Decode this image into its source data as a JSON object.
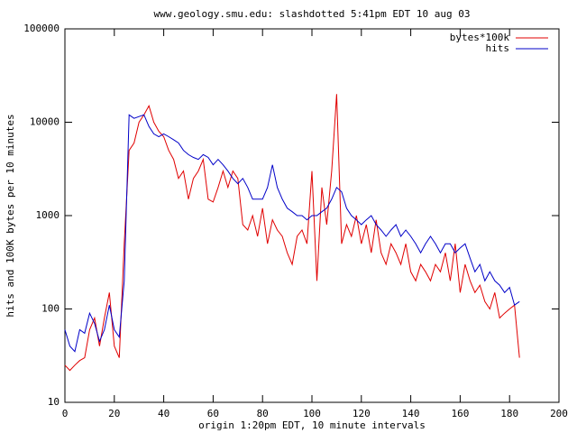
{
  "chart_data": {
    "type": "line",
    "title": "www.geology.smu.edu: slashdotted 5:41pm EDT 10 aug 03",
    "xlabel": "origin 1:20pm EDT, 10 minute intervals",
    "ylabel": "hits and 100K bytes per 10 minutes",
    "yscale": "log",
    "legend": "upper right",
    "xlim": [
      0,
      200
    ],
    "xticks": [
      0,
      20,
      40,
      60,
      80,
      100,
      120,
      140,
      160,
      180,
      200
    ],
    "ylim": [
      10,
      100000
    ],
    "yticks": [
      10,
      100,
      1000,
      10000,
      100000
    ],
    "x": [
      0,
      2,
      4,
      6,
      8,
      10,
      12,
      14,
      16,
      18,
      20,
      22,
      24,
      26,
      28,
      30,
      32,
      34,
      36,
      38,
      40,
      42,
      44,
      46,
      48,
      50,
      52,
      54,
      56,
      58,
      60,
      62,
      64,
      66,
      68,
      70,
      72,
      74,
      76,
      78,
      80,
      82,
      84,
      86,
      88,
      90,
      92,
      94,
      96,
      98,
      100,
      102,
      104,
      106,
      108,
      110,
      112,
      114,
      116,
      118,
      120,
      122,
      124,
      126,
      128,
      130,
      132,
      134,
      136,
      138,
      140,
      142,
      144,
      146,
      148,
      150,
      152,
      154,
      156,
      158,
      160,
      162,
      164,
      166,
      168,
      170,
      172,
      174,
      176,
      178,
      180,
      182,
      184
    ],
    "series": [
      {
        "name": "bytes*100k",
        "color": "#e00000",
        "values": [
          25,
          22,
          25,
          28,
          30,
          60,
          80,
          40,
          80,
          150,
          40,
          30,
          500,
          5000,
          6000,
          10000,
          12000,
          15000,
          10000,
          8000,
          7000,
          5000,
          4000,
          2500,
          3000,
          1500,
          2500,
          3000,
          4000,
          1500,
          1400,
          2000,
          3000,
          2000,
          3000,
          2500,
          800,
          700,
          1000,
          600,
          1200,
          500,
          900,
          700,
          600,
          400,
          300,
          600,
          700,
          500,
          3000,
          200,
          2000,
          800,
          3000,
          20000,
          500,
          800,
          600,
          1000,
          500,
          800,
          400,
          900,
          400,
          300,
          500,
          400,
          300,
          500,
          250,
          200,
          300,
          250,
          200,
          300,
          250,
          400,
          200,
          500,
          150,
          300,
          200,
          150,
          180,
          120,
          100,
          150,
          80,
          90,
          100,
          110,
          30
        ]
      },
      {
        "name": "hits",
        "color": "#0000c8",
        "values": [
          60,
          40,
          35,
          60,
          55,
          90,
          70,
          45,
          60,
          110,
          60,
          50,
          200,
          12000,
          11000,
          11500,
          12000,
          9000,
          7500,
          7000,
          7500,
          7000,
          6500,
          6000,
          5000,
          4500,
          4200,
          4000,
          4500,
          4200,
          3500,
          4000,
          3500,
          3000,
          2500,
          2200,
          2500,
          2000,
          1500,
          1500,
          1500,
          2000,
          3500,
          2000,
          1500,
          1200,
          1100,
          1000,
          1000,
          900,
          1000,
          1000,
          1100,
          1200,
          1500,
          2000,
          1800,
          1200,
          1000,
          900,
          800,
          900,
          1000,
          800,
          700,
          600,
          700,
          800,
          600,
          700,
          600,
          500,
          400,
          500,
          600,
          500,
          400,
          500,
          500,
          400,
          450,
          500,
          350,
          250,
          300,
          200,
          250,
          200,
          180,
          150,
          170,
          110,
          120
        ]
      }
    ]
  }
}
